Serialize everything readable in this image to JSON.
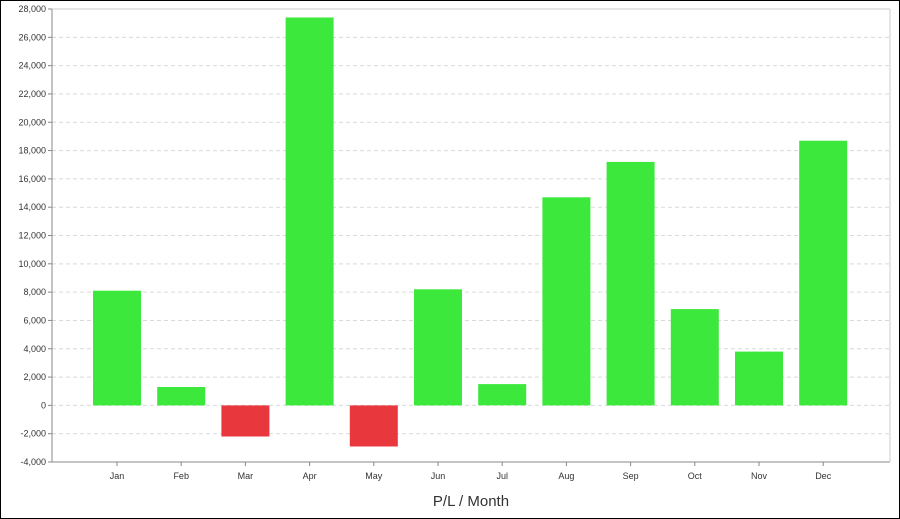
{
  "chart_data": {
    "type": "bar",
    "title": "",
    "xlabel": "P/L / Month",
    "ylabel": "",
    "categories": [
      "Jan",
      "Feb",
      "Mar",
      "Apr",
      "May",
      "Jun",
      "Jul",
      "Aug",
      "Sep",
      "Oct",
      "Nov",
      "Dec"
    ],
    "values": [
      8100,
      1300,
      -2200,
      27400,
      -2900,
      8200,
      1500,
      14700,
      17200,
      6800,
      3800,
      18700
    ],
    "ylim": [
      -4000,
      28000
    ],
    "yticks": [
      -4000,
      -2000,
      0,
      2000,
      4000,
      6000,
      8000,
      10000,
      12000,
      14000,
      16000,
      18000,
      20000,
      22000,
      24000,
      26000,
      28000
    ],
    "ytick_labels": [
      "-4,000",
      "-2,000",
      "0",
      "2,000",
      "4,000",
      "6,000",
      "8,000",
      "10,000",
      "12,000",
      "14,000",
      "16,000",
      "18,000",
      "20,000",
      "22,000",
      "24,000",
      "26,000",
      "28,000"
    ],
    "grid": true,
    "legend": "none",
    "colors": {
      "positive": "#3DE83D",
      "negative": "#E8383D",
      "grid": "#D9D9D9",
      "axis": "#888888"
    }
  }
}
